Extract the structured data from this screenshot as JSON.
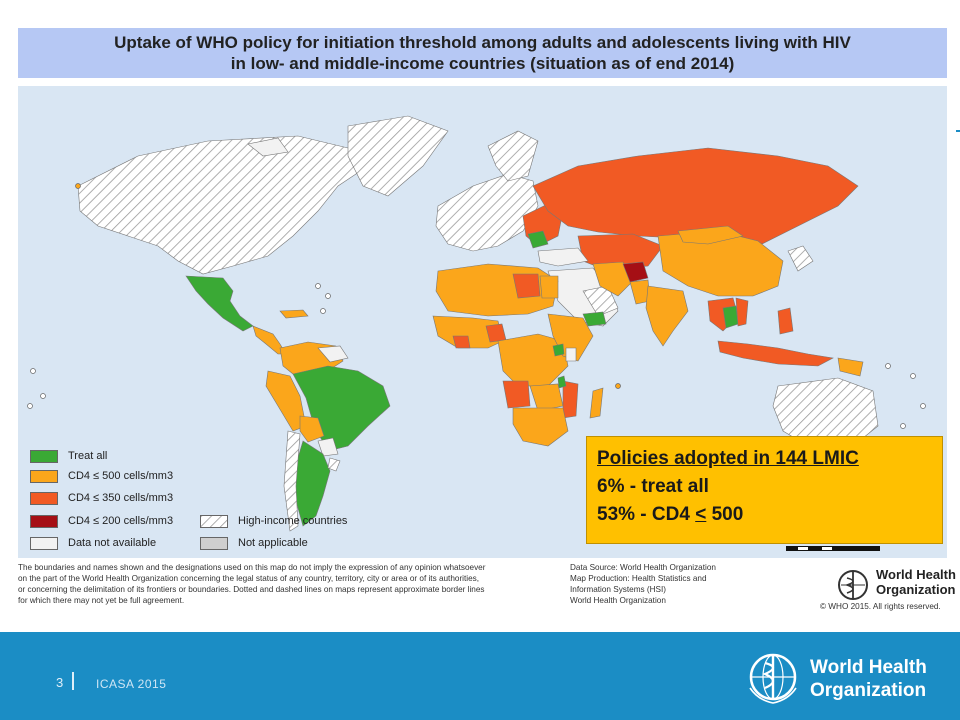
{
  "title": {
    "line1": "Uptake of WHO policy for initiation threshold among adults and adolescents living with HIV",
    "line2": "in low- and middle-income countries (situation as of end 2014)"
  },
  "colors": {
    "treat_all": "#3aa935",
    "cd4_500": "#fba61b",
    "cd4_350": "#f15a24",
    "cd4_200": "#a50f15",
    "high_income": "#ffffff",
    "not_available": "#f2f2f2",
    "not_applicable": "#cfcfcf",
    "ocean": "#d9e6f3",
    "footer_bar": "#1b8dc5",
    "callout": "#ffc000"
  },
  "legend": {
    "treat_all": "Treat all",
    "cd4_500": "CD4 ≤ 500 cells/mm3",
    "cd4_350": "CD4 ≤ 350 cells/mm3",
    "cd4_200": "CD4 ≤ 200 cells/mm3",
    "not_available": "Data not available",
    "high_income": "High-income countries",
    "not_applicable": "Not applicable"
  },
  "callout": {
    "line1": "Policies adopted  in 144 LMIC",
    "line2": "6% - treat all",
    "line3_prefix": "53% - CD4 ",
    "line3_symbol": "<",
    "line3_suffix": " 500"
  },
  "disclaimer": [
    "The boundaries and names shown and the designations used on this map do not imply the expression of any opinion whatsoever",
    "on the part of the World Health Organization concerning the legal status of any country, territory, city or area or of its authorities,",
    "or concerning the delimitation of its frontiers or boundaries. Dotted and dashed lines on maps represent approximate border lines",
    "for which there may not yet be full agreement."
  ],
  "source": [
    "Data Source: World Health Organization",
    "Map Production: Health Statistics and",
    "Information Systems (HSI)",
    "World Health Organization"
  ],
  "who_small": {
    "line1": "World Health",
    "line2": "Organization"
  },
  "copyright": "© WHO 2015. All rights reserved.",
  "footer": {
    "slide_number": "3",
    "event": "ICASA  2015",
    "logo_line1": "World Health",
    "logo_line2": "Organization"
  }
}
